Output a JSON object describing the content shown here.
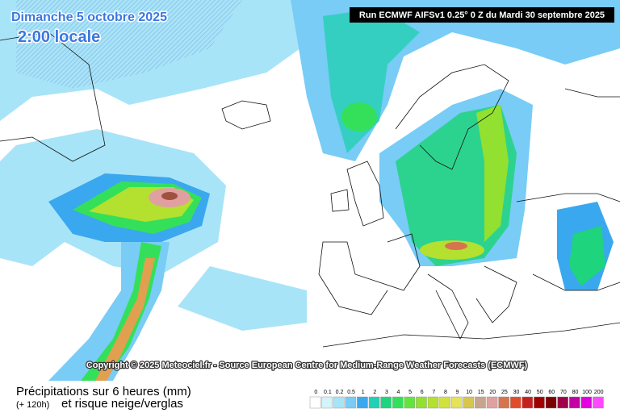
{
  "header": {
    "date": "Dimanche 5 octobre 2025",
    "local_time": "2:00 locale",
    "run": "Run ECMWF AIFSv1 0.25° 0 Z du Mardi 30 septembre 2025"
  },
  "copyright": "Copyright © 2025 Meteociel.fr - Source European Centre for Medium-Range Weather Forecasts (ECMWF)",
  "legend": {
    "title": "Précipitations sur 6 heures (mm)",
    "lead": "(+ 120h)",
    "subtitle": "et risque neige/verglas",
    "items": [
      {
        "label": "0",
        "color": "#ffffff"
      },
      {
        "label": "0.1",
        "color": "#d4f4fa"
      },
      {
        "label": "0.2",
        "color": "#a8e4f8"
      },
      {
        "label": "0.5",
        "color": "#78ccf6"
      },
      {
        "label": "1",
        "color": "#3aa8ee"
      },
      {
        "label": "2",
        "color": "#24d0b4"
      },
      {
        "label": "3",
        "color": "#1ed47c"
      },
      {
        "label": "4",
        "color": "#34e05a"
      },
      {
        "label": "5",
        "color": "#64e43a"
      },
      {
        "label": "6",
        "color": "#92e030"
      },
      {
        "label": "7",
        "color": "#b4e030"
      },
      {
        "label": "8",
        "color": "#d2e23c"
      },
      {
        "label": "9",
        "color": "#e6e25a"
      },
      {
        "label": "10",
        "color": "#d6c64e"
      },
      {
        "label": "15",
        "color": "#c8a48c"
      },
      {
        "label": "20",
        "color": "#e0a0a0"
      },
      {
        "label": "25",
        "color": "#d6744e"
      },
      {
        "label": "30",
        "color": "#e04c2c"
      },
      {
        "label": "40",
        "color": "#c42020"
      },
      {
        "label": "50",
        "color": "#a00000"
      },
      {
        "label": "60",
        "color": "#7c0000"
      },
      {
        "label": "70",
        "color": "#a00048"
      },
      {
        "label": "80",
        "color": "#c400a4"
      },
      {
        "label": "100",
        "color": "#e000e0"
      },
      {
        "label": "200",
        "color": "#ff48ff"
      }
    ]
  }
}
